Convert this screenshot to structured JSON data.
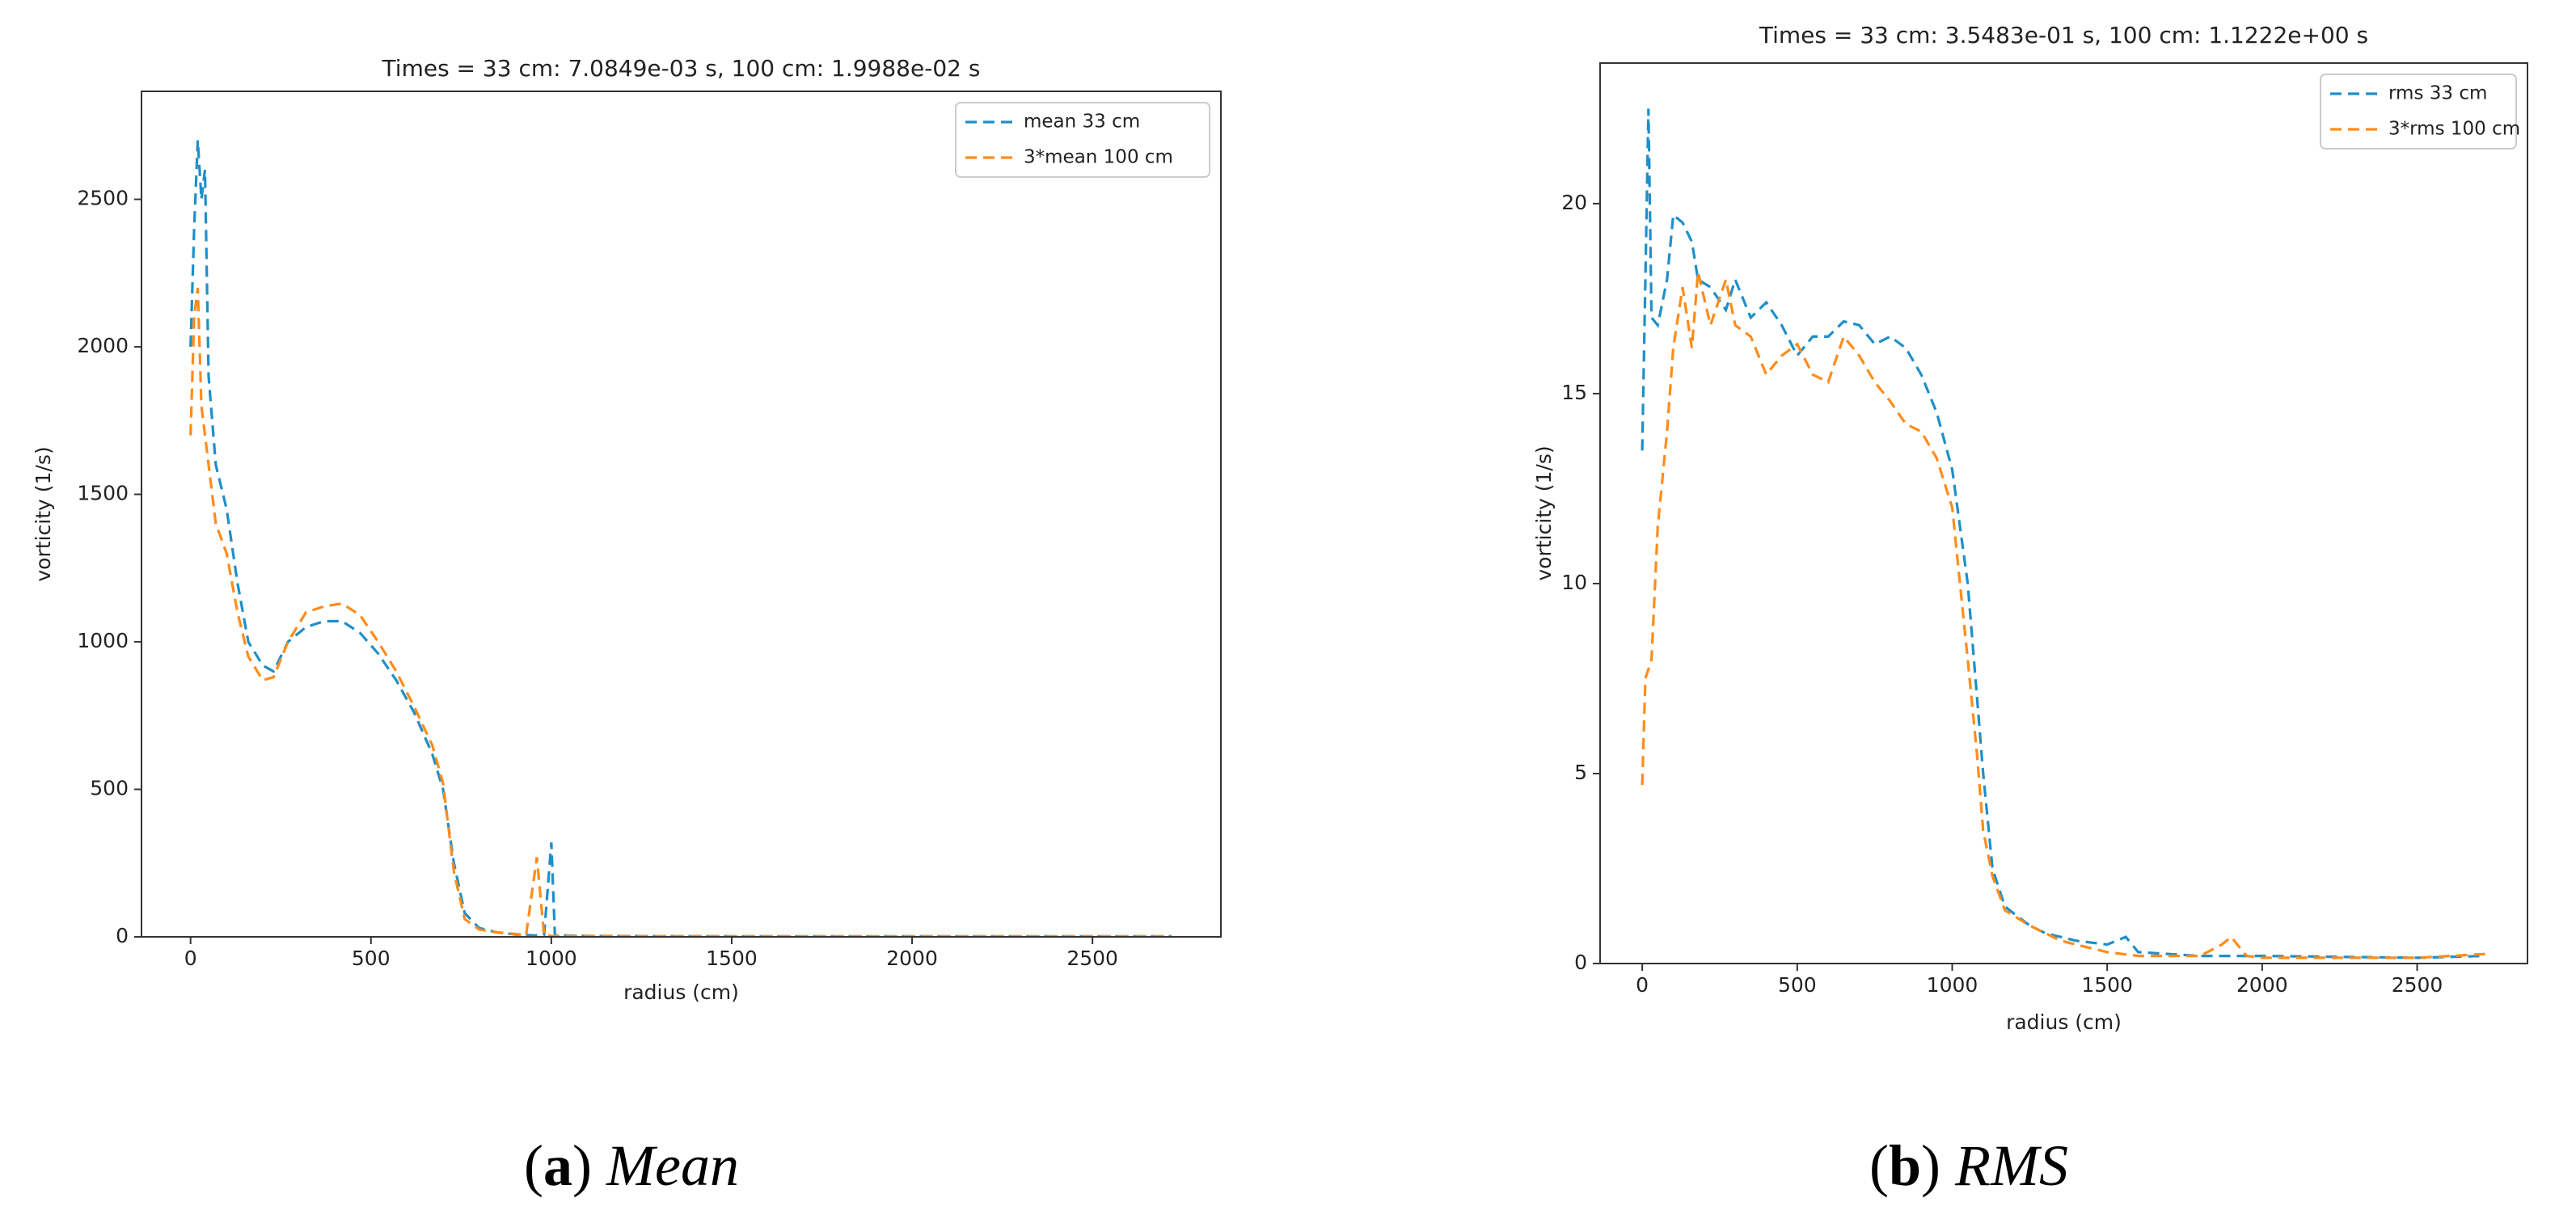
{
  "chart_data": [
    {
      "type": "line",
      "title": "Times = 33 cm:   7.0849e-03 s,   100 cm:   1.9988e-02 s",
      "xlabel": "radius (cm)",
      "ylabel": "vorticity (1/s)",
      "xlim": [
        -136,
        2856
      ],
      "ylim": [
        0,
        2866
      ],
      "xticks": [
        0,
        500,
        1000,
        1500,
        2000,
        2500
      ],
      "yticks": [
        0,
        500,
        1000,
        1500,
        2000,
        2500
      ],
      "legend": "upper right",
      "linestyle": "dashed",
      "caption": [
        "(",
        "a",
        ")",
        "Mean"
      ],
      "series": [
        {
          "name": "mean 33 cm",
          "color": "#1f8fc8",
          "x": [
            0,
            10,
            20,
            30,
            40,
            50,
            70,
            100,
            130,
            160,
            200,
            230,
            270,
            320,
            370,
            420,
            470,
            520,
            570,
            620,
            670,
            700,
            730,
            760,
            800,
            850,
            900,
            950,
            980,
            1000,
            1010,
            1100,
            1500,
            2000,
            2720
          ],
          "values": [
            2000,
            2400,
            2700,
            2500,
            2600,
            1900,
            1600,
            1450,
            1200,
            1000,
            920,
            900,
            1000,
            1050,
            1070,
            1070,
            1030,
            960,
            870,
            760,
            620,
            500,
            250,
            80,
            30,
            15,
            8,
            5,
            5,
            320,
            5,
            3,
            2,
            2,
            2
          ]
        },
        {
          "name": "3*mean 100 cm",
          "color": "#ff8c1a",
          "x": [
            0,
            10,
            20,
            30,
            50,
            70,
            100,
            130,
            160,
            200,
            230,
            270,
            320,
            370,
            420,
            470,
            520,
            570,
            620,
            670,
            700,
            730,
            760,
            800,
            850,
            900,
            930,
            960,
            980,
            1000,
            1500,
            2000,
            2720
          ],
          "values": [
            1700,
            2100,
            2200,
            1800,
            1600,
            1400,
            1300,
            1100,
            950,
            870,
            880,
            1000,
            1100,
            1120,
            1130,
            1090,
            1000,
            900,
            780,
            650,
            520,
            220,
            60,
            25,
            15,
            10,
            5,
            270,
            5,
            3,
            2,
            2,
            2
          ]
        }
      ]
    },
    {
      "type": "line",
      "title": "Times = 33 cm:   3.5483e-01 s,   100 cm:   1.1222e+00 s",
      "xlabel": "radius (cm)",
      "ylabel": "vorticity (1/s)",
      "xlim": [
        -136,
        2856
      ],
      "ylim": [
        0,
        23.7
      ],
      "xticks": [
        0,
        500,
        1000,
        1500,
        2000,
        2500
      ],
      "yticks": [
        0,
        5,
        10,
        15,
        20
      ],
      "legend": "upper right",
      "linestyle": "dashed",
      "caption": [
        "(",
        "b",
        ")",
        "RMS"
      ],
      "series": [
        {
          "name": "rms 33 cm",
          "color": "#1f8fc8",
          "x": [
            0,
            10,
            20,
            30,
            50,
            80,
            100,
            130,
            160,
            180,
            220,
            270,
            300,
            350,
            400,
            450,
            500,
            550,
            600,
            650,
            700,
            750,
            800,
            850,
            900,
            950,
            1000,
            1050,
            1080,
            1100,
            1130,
            1170,
            1250,
            1300,
            1400,
            1500,
            1560,
            1600,
            1800,
            2000,
            2500,
            2720
          ],
          "values": [
            13.5,
            18,
            22.5,
            17,
            16.8,
            18,
            19.7,
            19.5,
            19,
            18,
            17.8,
            17.2,
            18,
            17,
            17.4,
            16.8,
            16,
            16.5,
            16.5,
            16.9,
            16.8,
            16.3,
            16.5,
            16.2,
            15.5,
            14.5,
            13,
            10,
            7,
            5,
            2.5,
            1.5,
            1.0,
            0.8,
            0.6,
            0.5,
            0.7,
            0.3,
            0.2,
            0.2,
            0.15,
            0.2
          ]
        },
        {
          "name": "3*rms 100 cm",
          "color": "#ff8c1a",
          "x": [
            0,
            10,
            30,
            50,
            80,
            100,
            130,
            160,
            180,
            220,
            270,
            300,
            350,
            400,
            450,
            500,
            550,
            600,
            650,
            700,
            750,
            800,
            850,
            900,
            950,
            1000,
            1050,
            1080,
            1100,
            1130,
            1170,
            1250,
            1350,
            1500,
            1600,
            1800,
            1870,
            1900,
            1950,
            2000,
            2500,
            2720
          ],
          "values": [
            4.7,
            7.5,
            8,
            11.5,
            14,
            16.2,
            17.8,
            16.2,
            18.2,
            16.8,
            18,
            16.8,
            16.5,
            15.5,
            16,
            16.3,
            15.5,
            15.3,
            16.5,
            16,
            15.3,
            14.8,
            14.2,
            14,
            13.3,
            12,
            8,
            5.5,
            3.5,
            2.3,
            1.4,
            1.0,
            0.6,
            0.3,
            0.2,
            0.2,
            0.5,
            0.7,
            0.2,
            0.15,
            0.15,
            0.25
          ]
        }
      ]
    }
  ]
}
